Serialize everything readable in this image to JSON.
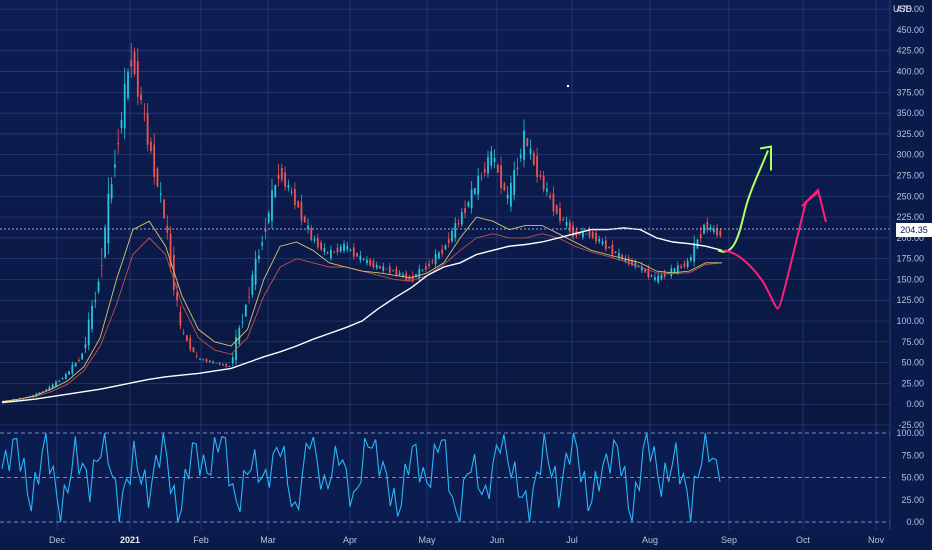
{
  "currency": "USD",
  "last_price_label": "204.35",
  "colors": {
    "background": "#0a1a4a",
    "grid": "#3a4f8a",
    "up": "#26c6da",
    "down": "#ef5350",
    "ma_long": "#ffffff",
    "ma_mid": "#d4c96a",
    "ma_short": "#c05050",
    "oscillator": "#29b6f6",
    "forecast_up": "#b2ff59",
    "forecast_down": "#ff1f78"
  },
  "chart_data": [
    {
      "type": "line",
      "name": "price",
      "y_axis_ticks": [
        "475.00",
        "450.00",
        "425.00",
        "400.00",
        "375.00",
        "350.00",
        "325.00",
        "300.00",
        "275.00",
        "250.00",
        "225.00",
        "200.00",
        "175.00",
        "150.00",
        "125.00",
        "100.00",
        "75.00",
        "50.00",
        "25.00",
        "0.00",
        "-25.00"
      ],
      "x_axis_ticks": [
        "Dec",
        "2021",
        "Feb",
        "Mar",
        "Apr",
        "May",
        "Jun",
        "Jul",
        "Aug",
        "Sep",
        "Oct",
        "Nov"
      ],
      "ylim": [
        -25,
        480
      ],
      "x": [
        "Nov 18",
        "Dec 1",
        "Dec 15",
        "Jan 1",
        "Jan 12",
        "Jan 20",
        "Jan 25",
        "Jan 27",
        "Jan 28",
        "Jan 29",
        "Feb 1",
        "Feb 3",
        "Feb 8",
        "Feb 15",
        "Feb 22",
        "Feb 25",
        "Mar 1",
        "Mar 5",
        "Mar 10",
        "Mar 15",
        "Mar 20",
        "Mar 25",
        "Apr 1",
        "Apr 10",
        "Apr 20",
        "May 1",
        "May 10",
        "May 20",
        "May 25",
        "Jun 1",
        "Jun 4",
        "Jun 8",
        "Jun 9",
        "Jun 10",
        "Jun 15",
        "Jun 22",
        "Jul 1",
        "Jul 10",
        "Jul 20",
        "Aug 1",
        "Aug 10",
        "Aug 20",
        "Aug 24",
        "Aug 26",
        "Aug 30"
      ],
      "close": [
        3,
        5,
        10,
        20,
        35,
        60,
        150,
        300,
        420,
        320,
        225,
        90,
        55,
        50,
        45,
        120,
        200,
        280,
        245,
        200,
        180,
        190,
        175,
        165,
        160,
        150,
        165,
        185,
        220,
        260,
        300,
        245,
        320,
        270,
        230,
        205,
        205,
        190,
        175,
        165,
        150,
        160,
        170,
        215,
        204
      ],
      "ma_long": [
        2,
        4,
        6,
        9,
        12,
        15,
        18,
        22,
        26,
        30,
        33,
        35,
        37,
        40,
        43,
        50,
        57,
        63,
        70,
        78,
        85,
        92,
        100,
        115,
        128,
        140,
        155,
        165,
        170,
        180,
        185,
        190,
        192,
        195,
        200,
        205,
        210,
        210,
        212,
        210,
        200,
        195,
        193,
        190,
        185
      ],
      "series_overlay_note": "",
      "ma_mid": [
        3,
        6,
        10,
        18,
        28,
        45,
        80,
        150,
        210,
        220,
        190,
        130,
        90,
        75,
        70,
        90,
        150,
        190,
        195,
        185,
        170,
        165,
        160,
        158,
        155,
        152,
        158,
        170,
        200,
        225,
        220,
        210,
        215,
        215,
        205,
        195,
        185,
        180,
        175,
        170,
        160,
        158,
        160,
        170,
        170
      ],
      "ma_short": [
        3,
        6,
        9,
        15,
        24,
        40,
        70,
        120,
        180,
        200,
        180,
        120,
        80,
        65,
        60,
        80,
        130,
        165,
        175,
        170,
        165,
        165,
        160,
        155,
        150,
        148,
        155,
        168,
        185,
        200,
        205,
        200,
        200,
        205,
        200,
        190,
        183,
        178,
        172,
        165,
        158,
        157,
        158,
        168,
        170
      ]
    },
    {
      "type": "line",
      "name": "oscillator",
      "y_axis_ticks": [
        "100.00",
        "75.00",
        "50.00",
        "25.00",
        "0.00"
      ],
      "ylim": [
        0,
        100
      ],
      "values": [
        60,
        90,
        20,
        95,
        5,
        80,
        40,
        100,
        10,
        75,
        30,
        95,
        0,
        85,
        55,
        100,
        15,
        70,
        45,
        90,
        5,
        100,
        35,
        80,
        20,
        95,
        60,
        10,
        85,
        40,
        100,
        0,
        70,
        25,
        95,
        50,
        10,
        90,
        30,
        100,
        20,
        60,
        85,
        5,
        100,
        40,
        75,
        15,
        95,
        45
      ]
    }
  ],
  "forecast": {
    "up_path_end": 305,
    "down_path_low": 115,
    "down_path_end": 255
  }
}
